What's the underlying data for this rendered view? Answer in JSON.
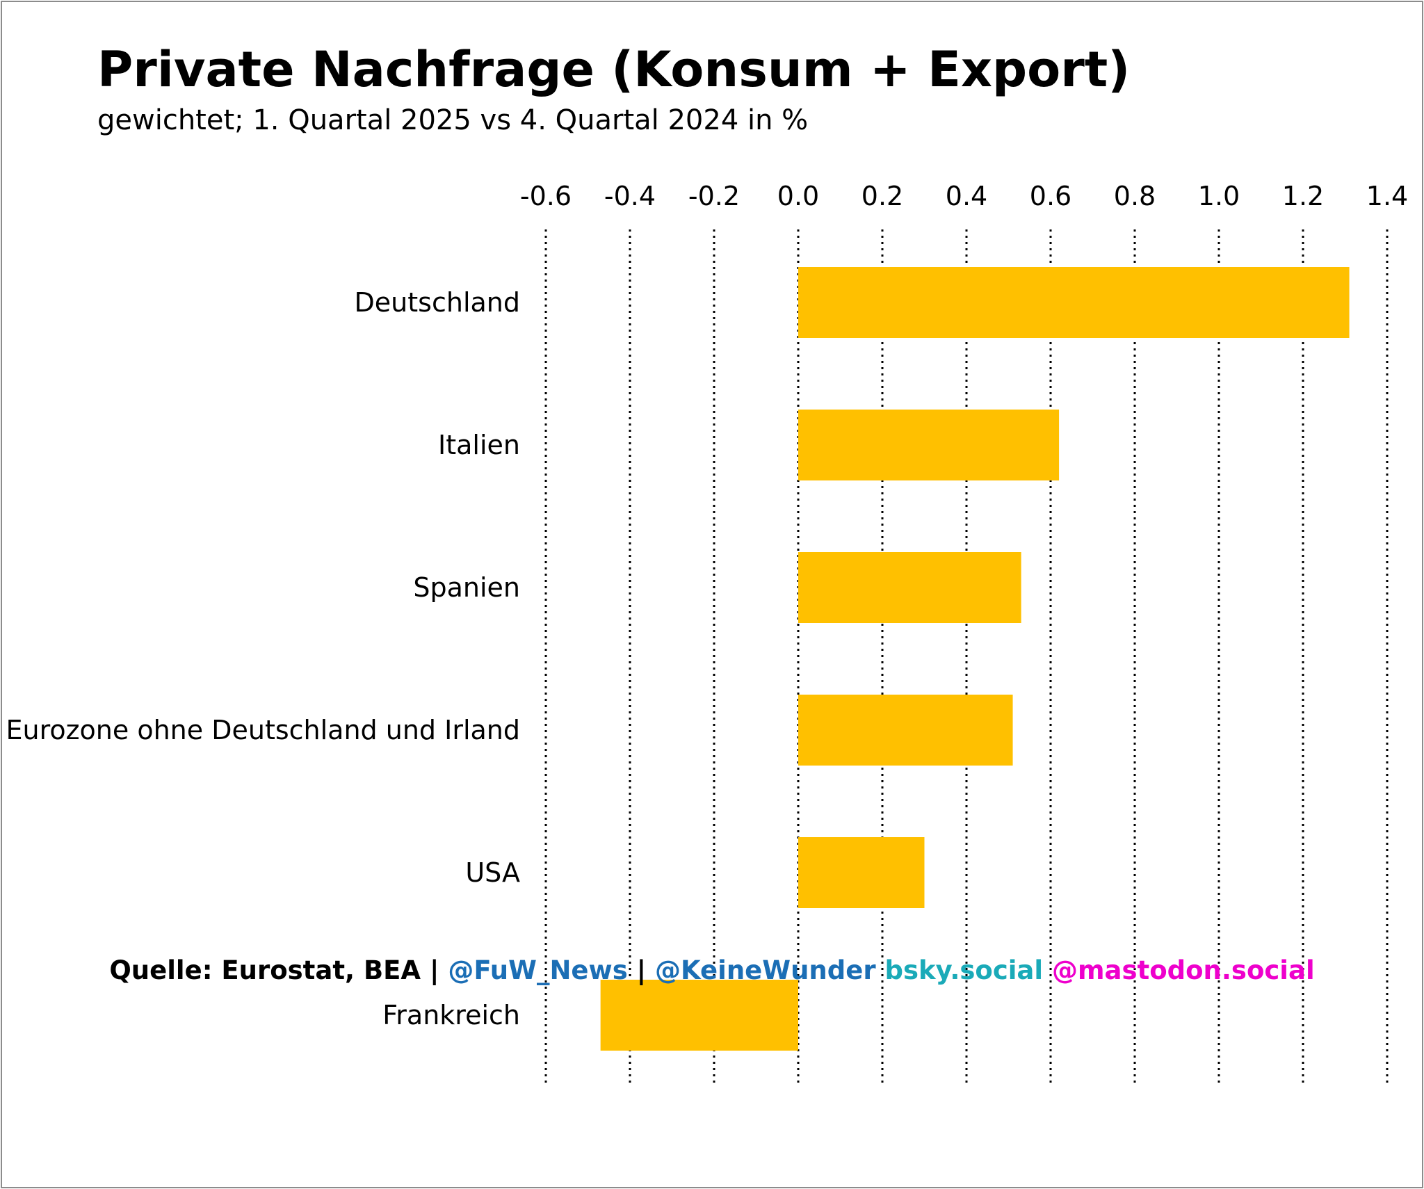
{
  "title": "Private Nachfrage (Konsum + Export)",
  "subtitle": "gewichtet; 1. Quartal 2025 vs 4. Quartal 2024 in %",
  "chart_data": {
    "type": "bar",
    "orientation": "horizontal",
    "title": "Private Nachfrage (Konsum + Export)",
    "subtitle": "gewichtet; 1. Quartal 2025 vs 4. Quartal 2024 in %",
    "categories": [
      "Deutschland",
      "Italien",
      "Spanien",
      "Eurozone ohne Deutschland und Irland",
      "USA",
      "Frankreich"
    ],
    "values": [
      1.31,
      0.62,
      0.53,
      0.51,
      0.3,
      -0.47
    ],
    "xlim": [
      -0.6,
      1.4
    ],
    "ticks": [
      "-0.6",
      "-0.4",
      "-0.2",
      "0.0",
      "0.2",
      "0.4",
      "0.6",
      "0.8",
      "1.0",
      "1.2",
      "1.4"
    ],
    "tick_values": [
      -0.6,
      -0.4,
      -0.2,
      0.0,
      0.2,
      0.4,
      0.6,
      0.8,
      1.0,
      1.2,
      1.4
    ],
    "axis_position": "top",
    "grid": "vertical dotted",
    "legend": "none",
    "bar_color": "#ffc000"
  },
  "footer": {
    "source": "Quelle: Eurostat, BEA",
    "separator": "|",
    "fuw": "@FuW_News",
    "keinewunder": "@KeineWunder",
    "bsky": "bsky.social",
    "mastodon": "@mastodon.social"
  },
  "colors": {
    "bar": "#ffc000",
    "fuw": "#1b6eb5",
    "keinewunder": "#1b6eb5",
    "bsky": "#1aaab8",
    "mastodon": "#ee00cc",
    "text": "#000000",
    "frame": "#8c8c8c"
  }
}
